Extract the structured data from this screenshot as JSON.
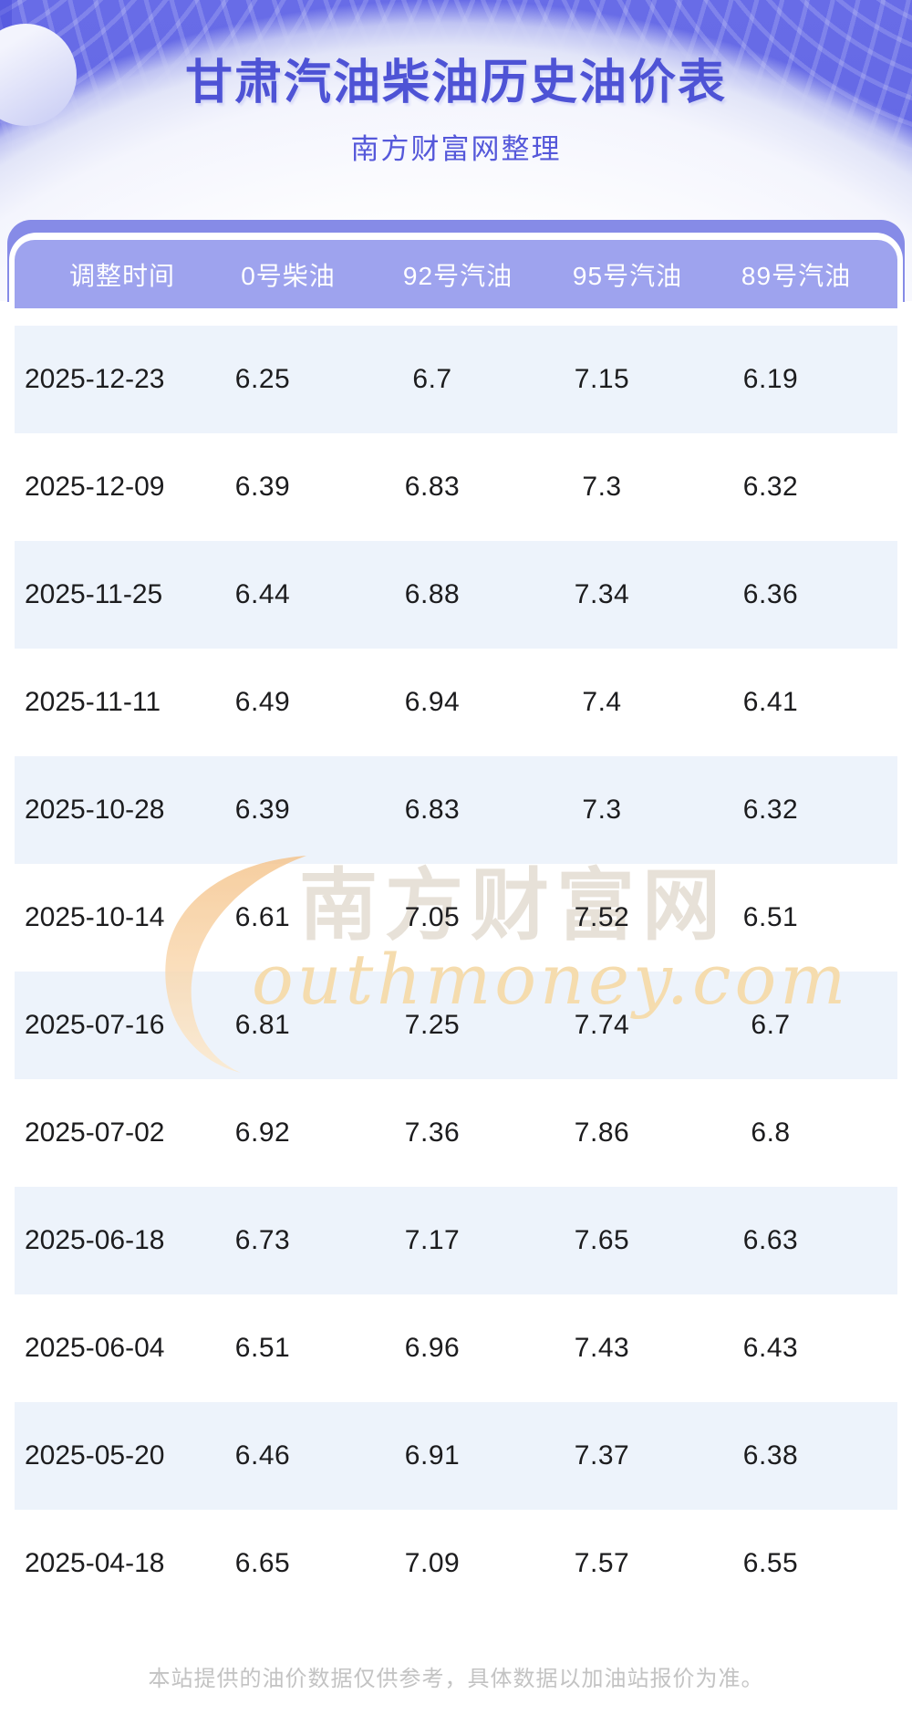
{
  "banner": {
    "title": "甘肃汽油柴油历史油价表",
    "subtitle": "南方财富网整理"
  },
  "table": {
    "headers": [
      "调整时间",
      "0号柴油",
      "92号汽油",
      "95号汽油",
      "89号汽油"
    ],
    "rows": [
      [
        "2025-12-23",
        "6.25",
        "6.7",
        "7.15",
        "6.19"
      ],
      [
        "2025-12-09",
        "6.39",
        "6.83",
        "7.3",
        "6.32"
      ],
      [
        "2025-11-25",
        "6.44",
        "6.88",
        "7.34",
        "6.36"
      ],
      [
        "2025-11-11",
        "6.49",
        "6.94",
        "7.4",
        "6.41"
      ],
      [
        "2025-10-28",
        "6.39",
        "6.83",
        "7.3",
        "6.32"
      ],
      [
        "2025-10-14",
        "6.61",
        "7.05",
        "7.52",
        "6.51"
      ],
      [
        "2025-07-16",
        "6.81",
        "7.25",
        "7.74",
        "6.7"
      ],
      [
        "2025-07-02",
        "6.92",
        "7.36",
        "7.86",
        "6.8"
      ],
      [
        "2025-06-18",
        "6.73",
        "7.17",
        "7.65",
        "6.63"
      ],
      [
        "2025-06-04",
        "6.51",
        "6.96",
        "7.43",
        "6.43"
      ],
      [
        "2025-05-20",
        "6.46",
        "6.91",
        "7.37",
        "6.38"
      ],
      [
        "2025-04-18",
        "6.65",
        "7.09",
        "7.57",
        "6.55"
      ]
    ]
  },
  "watermark": {
    "cn": "南方财富网",
    "en": "outhmoney.com"
  },
  "footer": {
    "disclaimer": "本站提供的油价数据仅供参考，具体数据以加油站报价为准。"
  },
  "colors": {
    "banner_purple": "#6467e6",
    "title_text": "#4e53d5",
    "header_bg": "#9ea3ee",
    "underlay_bar": "#868be7",
    "row_alt_bg": "#edf3fb",
    "row_text": "#1c1c1e",
    "watermark_cn": "#e7e1d8",
    "watermark_en": "#f5dcae",
    "watermark_s": "#f5c288",
    "footer_text": "#c3c3c3"
  },
  "chart_data": {
    "type": "table",
    "title": "甘肃汽油柴油历史油价表",
    "subtitle": "南方财富网整理",
    "columns": [
      "调整时间",
      "0号柴油",
      "92号汽油",
      "95号汽油",
      "89号汽油"
    ],
    "categories": [
      "2025-12-23",
      "2025-12-09",
      "2025-11-25",
      "2025-11-11",
      "2025-10-28",
      "2025-10-14",
      "2025-07-16",
      "2025-07-02",
      "2025-06-18",
      "2025-06-04",
      "2025-05-20",
      "2025-04-18"
    ],
    "series": [
      {
        "name": "0号柴油",
        "values": [
          6.25,
          6.39,
          6.44,
          6.49,
          6.39,
          6.61,
          6.81,
          6.92,
          6.73,
          6.51,
          6.46,
          6.65
        ]
      },
      {
        "name": "92号汽油",
        "values": [
          6.7,
          6.83,
          6.88,
          6.94,
          6.83,
          7.05,
          7.25,
          7.36,
          7.17,
          6.96,
          6.91,
          7.09
        ]
      },
      {
        "name": "95号汽油",
        "values": [
          7.15,
          7.3,
          7.34,
          7.4,
          7.3,
          7.52,
          7.74,
          7.86,
          7.65,
          7.43,
          7.37,
          7.57
        ]
      },
      {
        "name": "89号汽油",
        "values": [
          6.19,
          6.32,
          6.36,
          6.41,
          6.32,
          6.51,
          6.7,
          6.8,
          6.63,
          6.43,
          6.38,
          6.55
        ]
      }
    ]
  }
}
